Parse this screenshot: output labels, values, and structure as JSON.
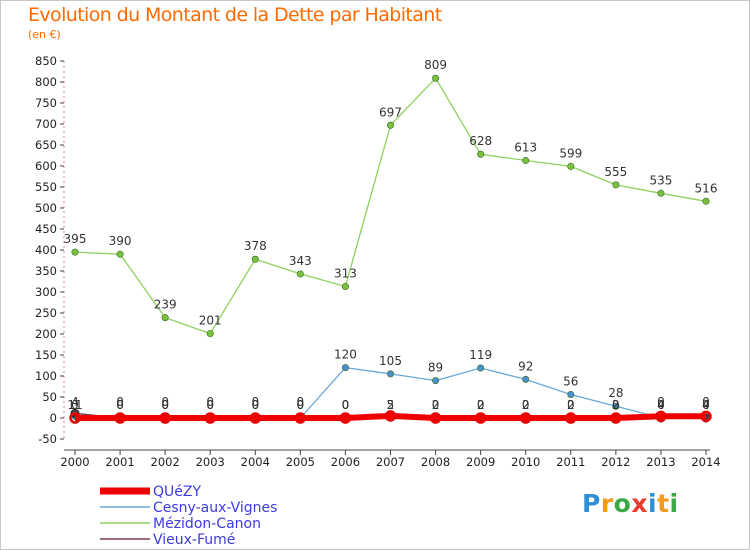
{
  "header": {
    "title": "Evolution du Montant de la Dette par Habitant",
    "subtitle": "(en €)"
  },
  "logo": {
    "letters": [
      "P",
      "r",
      "o",
      "x",
      "i",
      "t",
      "i"
    ],
    "colors": [
      "#2e8fd6",
      "#f39b1e",
      "#3aa845",
      "#e53c2f",
      "#2e8fd6",
      "#f39b1e",
      "#3aa845"
    ]
  },
  "chart_data": {
    "type": "line",
    "title": "Evolution du Montant de la Dette par Habitant",
    "subtitle": "(en €)",
    "xlabel": "",
    "ylabel": "",
    "x": [
      "2000",
      "2001",
      "2002",
      "2003",
      "2004",
      "2005",
      "2006",
      "2007",
      "2008",
      "2009",
      "2010",
      "2011",
      "2012",
      "2013",
      "2014"
    ],
    "ylim": [
      -50,
      850
    ],
    "yticks": [
      -50,
      0,
      50,
      100,
      150,
      200,
      250,
      300,
      350,
      400,
      450,
      500,
      550,
      600,
      650,
      700,
      750,
      800,
      850
    ],
    "grid": false,
    "legend_position": "bottom-left",
    "series": [
      {
        "name": "Mézidon-Canon",
        "color": "#90d060",
        "point_color": "#7ac143",
        "values": [
          395,
          390,
          239,
          201,
          378,
          343,
          313,
          697,
          809,
          628,
          613,
          599,
          555,
          535,
          516
        ],
        "labels": [
          "395",
          "390",
          "239",
          "201",
          "378",
          "343",
          "313",
          "697",
          "809",
          "628",
          "613",
          "599",
          "555",
          "535",
          "516"
        ]
      },
      {
        "name": "Cesny-aux-Vignes",
        "color": "#6aa8d8",
        "point_color": "#4a8fd0",
        "values": [
          4,
          0,
          0,
          0,
          0,
          0,
          120,
          105,
          89,
          119,
          92,
          56,
          28,
          0,
          0
        ],
        "labels": [
          "4",
          "0",
          "0",
          "0",
          "0",
          "0",
          "120",
          "105",
          "89",
          "119",
          "92",
          "56",
          "28",
          "0",
          "0"
        ]
      },
      {
        "name": "Vieux-Fumé",
        "color": "#7a3d55",
        "point_color": "#333333",
        "values": [
          11,
          0,
          0,
          0,
          0,
          0,
          0,
          2,
          2,
          2,
          2,
          2,
          2,
          0,
          0
        ],
        "labels": [
          "11",
          "0",
          "0",
          "0",
          "0",
          "0",
          "0",
          "2",
          "2",
          "2",
          "2",
          "2",
          "2",
          "0",
          "0"
        ]
      },
      {
        "name": "QUéZY",
        "color": "#ee0000",
        "point_color": "#ee0000",
        "values": [
          0,
          0,
          0,
          0,
          0,
          0,
          0,
          5,
          0,
          0,
          0,
          0,
          0,
          4,
          4
        ],
        "labels": [
          "0",
          "0",
          "0",
          "0",
          "0",
          "0",
          "0",
          "5",
          "0",
          "0",
          "0",
          "0",
          "0",
          "4",
          "4"
        ]
      }
    ],
    "legend_order": [
      "QUéZY",
      "Cesny-aux-Vignes",
      "Mézidon-Canon",
      "Vieux-Fumé"
    ]
  }
}
